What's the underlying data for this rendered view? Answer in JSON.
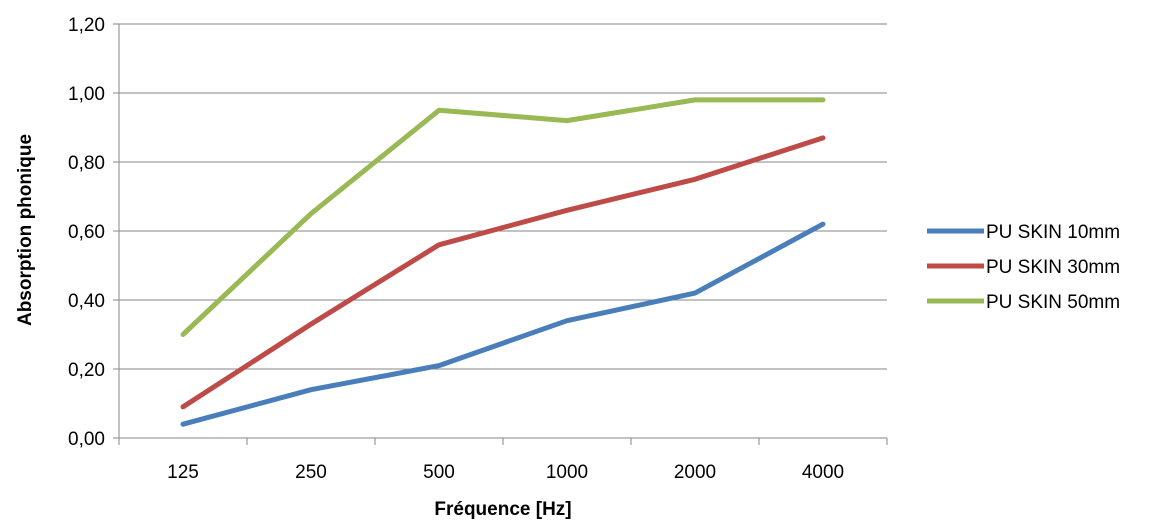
{
  "chart_data": {
    "type": "line",
    "categories": [
      "125",
      "250",
      "500",
      "1000",
      "2000",
      "4000"
    ],
    "series": [
      {
        "name": "PU SKIN 10mm",
        "color": "#4a7ebb",
        "values": [
          0.04,
          0.14,
          0.21,
          0.34,
          0.42,
          0.62
        ]
      },
      {
        "name": "PU SKIN 30mm",
        "color": "#be4b48",
        "values": [
          0.09,
          0.33,
          0.56,
          0.66,
          0.75,
          0.87
        ]
      },
      {
        "name": "PU SKIN 50mm",
        "color": "#98b954",
        "values": [
          0.3,
          0.65,
          0.95,
          0.92,
          0.98,
          0.98
        ]
      }
    ],
    "title": "",
    "xlabel": "Fréquence [Hz]",
    "ylabel": "Absorption phonique",
    "ylim": [
      0,
      1.2
    ],
    "yticks": [
      0,
      0.2,
      0.4,
      0.6,
      0.8,
      1.0,
      1.2
    ],
    "ytick_labels": [
      "0,00",
      "0,20",
      "0,40",
      "0,60",
      "0,80",
      "1,00",
      "1,20"
    ],
    "grid": true,
    "legend_position": "right"
  }
}
